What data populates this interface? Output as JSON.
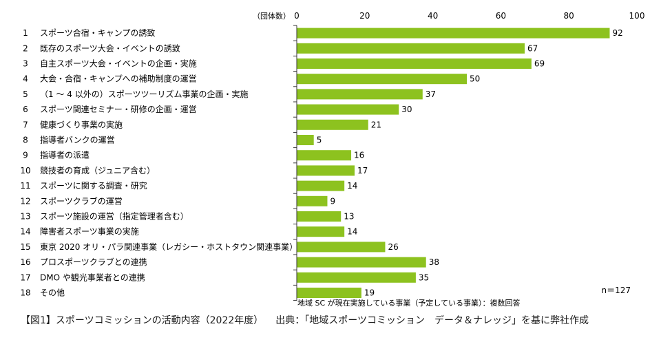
{
  "chart_data": {
    "type": "bar",
    "orientation": "horizontal",
    "unit_label": "（団体数）",
    "xlim": [
      0,
      100
    ],
    "xticks": [
      "0",
      "20",
      "40",
      "60",
      "80",
      "100"
    ],
    "bar_color": "#8dc21f",
    "grid": false,
    "categories": [
      {
        "num": "1",
        "label": "スポーツ合宿・キャンプの誘致",
        "value": 92
      },
      {
        "num": "2",
        "label": "既存のスポーツ大会・イベントの誘致",
        "value": 67
      },
      {
        "num": "3",
        "label": "自主スポーツ大会・イベントの企画・実施",
        "value": 69
      },
      {
        "num": "4",
        "label": "大会・合宿・キャンプへの補助制度の運営",
        "value": 50
      },
      {
        "num": "5",
        "label": "（1 ～ 4 以外の）スポーツツーリズム事業の企画・実施",
        "value": 37
      },
      {
        "num": "6",
        "label": "スポーツ関連セミナー・研修の企画・運営",
        "value": 30
      },
      {
        "num": "7",
        "label": "健康づくり事業の実施",
        "value": 21
      },
      {
        "num": "8",
        "label": "指導者バンクの運営",
        "value": 5
      },
      {
        "num": "9",
        "label": "指導者の派遣",
        "value": 16
      },
      {
        "num": "10",
        "label": "競技者の育成（ジュニア含む）",
        "value": 17
      },
      {
        "num": "11",
        "label": "スポーツに関する調査・研究",
        "value": 14
      },
      {
        "num": "12",
        "label": "スポーツクラブの運営",
        "value": 9
      },
      {
        "num": "13",
        "label": "スポーツ施設の運営（指定管理者含む）",
        "value": 13
      },
      {
        "num": "14",
        "label": "障害者スポーツ事業の実施",
        "value": 14
      },
      {
        "num": "15",
        "label": "東京 2020 オリ・パラ関連事業（レガシー・ホストタウン関連事業）",
        "value": 26
      },
      {
        "num": "16",
        "label": "プロスポーツクラブとの連携",
        "value": 38
      },
      {
        "num": "17",
        "label": "DMO や観光事業者との連携",
        "value": 35
      },
      {
        "num": "18",
        "label": "その他",
        "value": 19
      }
    ],
    "n_label": "n＝127",
    "note": "地域 SC が現在実施している事業（予定している事業）：複数回答"
  },
  "caption": {
    "title": "【図1】スポーツコミッションの活動内容（2022年度）",
    "source": "出典：「地域スポーツコミッション　データ＆ナレッジ」を基に弊社作成"
  }
}
